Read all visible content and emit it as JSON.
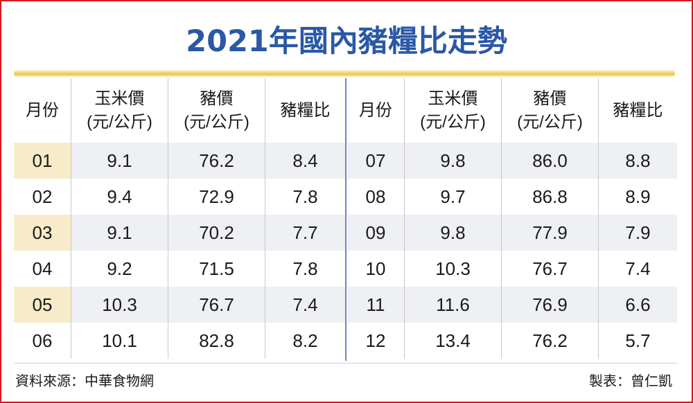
{
  "title": "2021年國內豬糧比走勢",
  "columns": {
    "month": "月份",
    "corn_line1": "玉米價",
    "corn_line2": "(元/公斤)",
    "pig_line1": "豬價",
    "pig_line2": "(元/公斤)",
    "ratio": "豬糧比"
  },
  "rows": [
    {
      "month": "01",
      "corn": "9.1",
      "pig": "76.2",
      "ratio": "8.4"
    },
    {
      "month": "02",
      "corn": "9.4",
      "pig": "72.9",
      "ratio": "7.8"
    },
    {
      "month": "03",
      "corn": "9.1",
      "pig": "70.2",
      "ratio": "7.7"
    },
    {
      "month": "04",
      "corn": "9.2",
      "pig": "71.5",
      "ratio": "7.8"
    },
    {
      "month": "05",
      "corn": "10.3",
      "pig": "76.7",
      "ratio": "7.4"
    },
    {
      "month": "06",
      "corn": "10.1",
      "pig": "82.8",
      "ratio": "8.2"
    },
    {
      "month": "07",
      "corn": "9.8",
      "pig": "86.0",
      "ratio": "8.8"
    },
    {
      "month": "08",
      "corn": "9.7",
      "pig": "86.8",
      "ratio": "8.9"
    },
    {
      "month": "09",
      "corn": "9.8",
      "pig": "77.9",
      "ratio": "7.9"
    },
    {
      "month": "10",
      "corn": "10.3",
      "pig": "76.7",
      "ratio": "7.4"
    },
    {
      "month": "11",
      "corn": "11.6",
      "pig": "76.9",
      "ratio": "6.6"
    },
    {
      "month": "12",
      "corn": "13.4",
      "pig": "76.2",
      "ratio": "5.7"
    }
  ],
  "footer": {
    "source": "資料來源：中華食物網",
    "credit": "製表：曾仁凱"
  },
  "colors": {
    "title": "#2a58a6",
    "border": "#d7171f",
    "stripe": "#eef0f4",
    "month_stripe": "#f8ebc9"
  }
}
